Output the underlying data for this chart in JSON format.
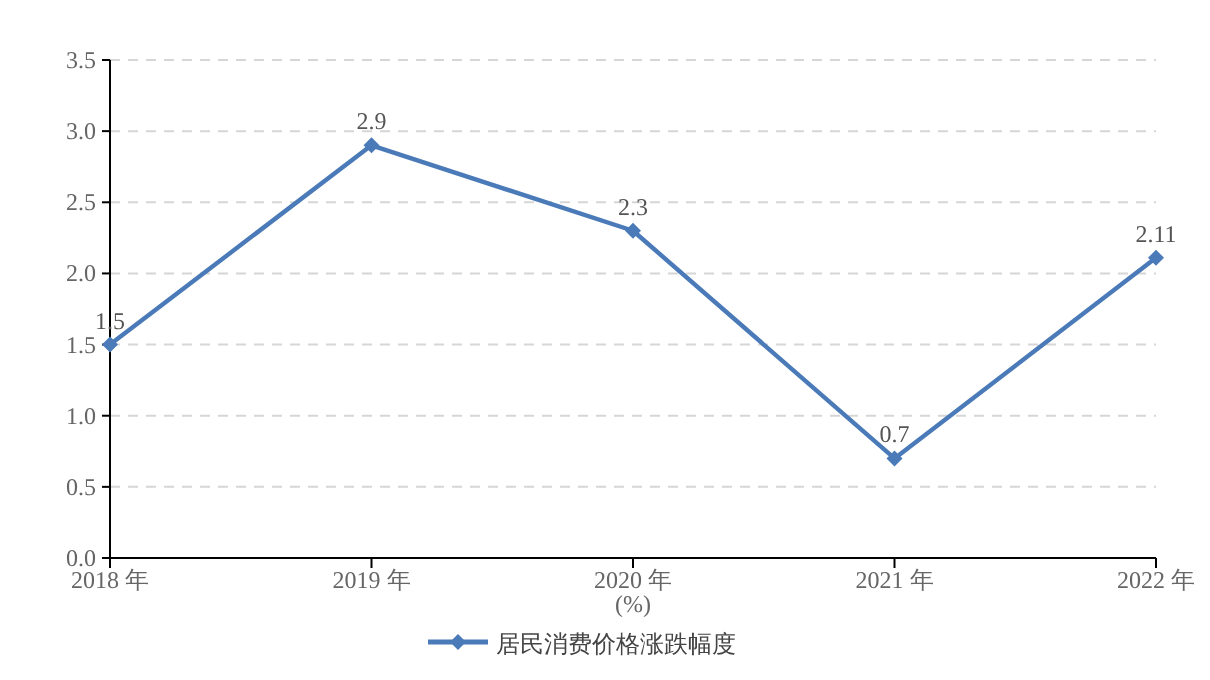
{
  "chart_data": {
    "type": "line",
    "xlabel": "(%)",
    "categories": [
      "2018 年",
      "2019 年",
      "2020 年",
      "2021 年",
      "2022 年"
    ],
    "series": [
      {
        "name": "居民消费价格涨跌幅度",
        "color": "#4a7ab8",
        "values": [
          1.5,
          2.9,
          2.3,
          0.7,
          2.11
        ]
      }
    ],
    "ylim": [
      0,
      3.5
    ],
    "yticks": [
      {
        "value": 0,
        "label": "0.0"
      },
      {
        "value": 0.5,
        "label": "0.5"
      },
      {
        "value": 1,
        "label": "1.0"
      },
      {
        "value": 1.5,
        "label": "1.5"
      },
      {
        "value": 2,
        "label": "2.0"
      },
      {
        "value": 2.5,
        "label": "2.5"
      },
      {
        "value": 3,
        "label": "3.0"
      },
      {
        "value": 3.5,
        "label": "3.5"
      }
    ],
    "grid": "y",
    "legend": "bottom",
    "marker": "diamond",
    "line_style": "solid",
    "data_labels": true
  }
}
